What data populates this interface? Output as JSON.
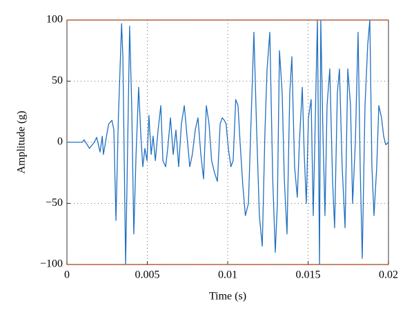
{
  "chart_data": {
    "type": "line",
    "xlabel": "Time (s)",
    "ylabel": "Amplitude (g)",
    "xlim": [
      0,
      0.02
    ],
    "ylim": [
      -100,
      100
    ],
    "xticks": [
      0,
      0.005,
      0.01,
      0.015,
      0.02
    ],
    "yticks": [
      {
        "value": -100,
        "label": "−100"
      },
      {
        "value": -50,
        "label": "−50"
      },
      0,
      50,
      100
    ],
    "grid": true,
    "thresholds": [
      100,
      -100
    ],
    "threshold_color": "#d95319",
    "x": [
      0,
      0.0005,
      0.00095,
      0.00107,
      0.0014,
      0.0017,
      0.00185,
      0.00206,
      0.0022,
      0.00227,
      0.0025,
      0.0026,
      0.0028,
      0.00292,
      0.00305,
      0.0032,
      0.0034,
      0.00348,
      0.00365,
      0.00373,
      0.0039,
      0.00403,
      0.00416,
      0.0043,
      0.00446,
      0.0046,
      0.00472,
      0.00485,
      0.00498,
      0.0051,
      0.00524,
      0.00536,
      0.0055,
      0.00567,
      0.00584,
      0.00597,
      0.00614,
      0.00627,
      0.00644,
      0.00661,
      0.00678,
      0.00695,
      0.00712,
      0.0073,
      0.00747,
      0.00764,
      0.0078,
      0.00798,
      0.00815,
      0.00833,
      0.0085,
      0.00867,
      0.00884,
      0.009,
      0.00918,
      0.00936,
      0.00953,
      0.00966,
      0.00979,
      0.0099,
      0.01004,
      0.0102,
      0.01034,
      0.0105,
      0.01064,
      0.01077,
      0.01094,
      0.0111,
      0.01129,
      0.01146,
      0.01163,
      0.0118,
      0.01197,
      0.01215,
      0.01232,
      0.01245,
      0.01262,
      0.0128,
      0.01296,
      0.01309,
      0.01322,
      0.01339,
      0.01352,
      0.01369,
      0.01386,
      0.01399,
      0.01416,
      0.01433,
      0.01446,
      0.01464,
      0.01476,
      0.01489,
      0.01502,
      0.01519,
      0.01532,
      0.01545,
      0.01558,
      0.01566,
      0.01571,
      0.01579,
      0.01592,
      0.01605,
      0.01618,
      0.01635,
      0.01652,
      0.01665,
      0.01682,
      0.01695,
      0.01712,
      0.0173,
      0.01747,
      0.01764,
      0.01777,
      0.01794,
      0.01811,
      0.01824,
      0.01837,
      0.01854,
      0.01871,
      0.01884,
      0.01897,
      0.0191,
      0.01927,
      0.0194,
      0.01957,
      0.0197,
      0.01983,
      0.02
    ],
    "series": [
      {
        "color": "#1f6fc0",
        "values": [
          0,
          0,
          0,
          2,
          -5,
          0,
          4,
          -8,
          5,
          -10,
          8,
          15,
          18,
          10,
          -64,
          20,
          97,
          70,
          -100,
          -40,
          95,
          30,
          -75,
          -10,
          45,
          5,
          -20,
          -5,
          -15,
          22,
          -10,
          5,
          -15,
          10,
          30,
          -15,
          -20,
          -5,
          20,
          -10,
          10,
          -20,
          15,
          30,
          5,
          -20,
          -10,
          10,
          20,
          -10,
          -30,
          30,
          15,
          -15,
          -25,
          -32,
          15,
          20,
          18,
          15,
          -5,
          -20,
          -15,
          35,
          30,
          0,
          -35,
          -60,
          -50,
          20,
          90,
          10,
          -60,
          -85,
          10,
          60,
          90,
          -30,
          -90,
          -50,
          75,
          40,
          -30,
          -75,
          40,
          70,
          -20,
          -45,
          0,
          45,
          -10,
          -50,
          20,
          35,
          -60,
          20,
          100,
          -20,
          -100,
          100,
          10,
          -60,
          30,
          60,
          -30,
          -70,
          40,
          60,
          -20,
          -70,
          60,
          30,
          -50,
          0,
          90,
          -20,
          -95,
          30,
          80,
          100,
          -20,
          -60,
          -20,
          30,
          20,
          5,
          -2,
          0
        ]
      }
    ]
  }
}
